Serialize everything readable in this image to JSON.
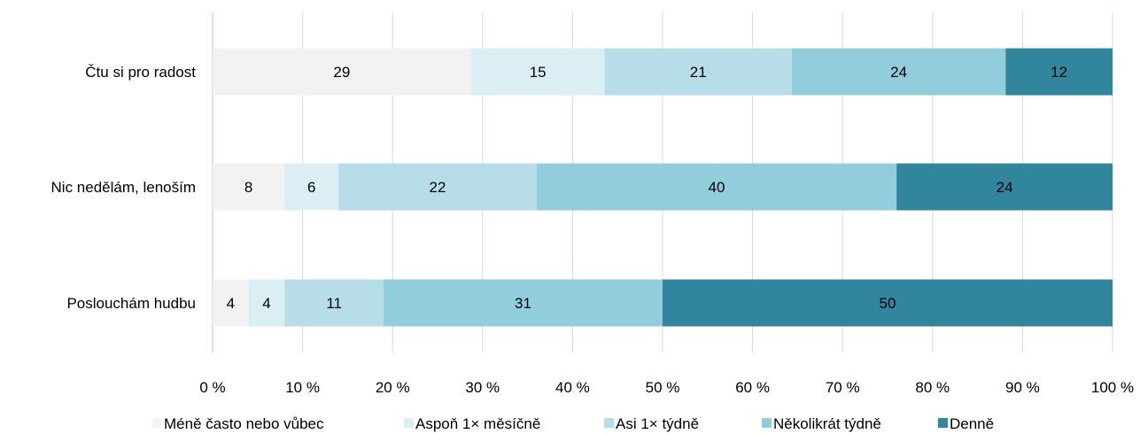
{
  "chart_data": {
    "type": "bar",
    "orientation": "horizontal",
    "stacked": "percent",
    "categories": [
      "Čtu si pro radost",
      "Nic nedělám, lenoším",
      "Poslouchám hudbu"
    ],
    "series": [
      {
        "name": "Méně často nebo vůbec",
        "color": "#f2f2f2",
        "values": [
          29,
          8,
          4
        ]
      },
      {
        "name": "Aspoň 1× měsíčně",
        "color": "#daeef3",
        "values": [
          15,
          6,
          4
        ]
      },
      {
        "name": "Asi 1× týdně",
        "color": "#b7dde8",
        "values": [
          21,
          22,
          11
        ]
      },
      {
        "name": "Několikrát týdně",
        "color": "#92cddc",
        "values": [
          24,
          40,
          31
        ]
      },
      {
        "name": "Denně",
        "color": "#31859c",
        "values": [
          12,
          24,
          50
        ]
      }
    ],
    "xlim": [
      0,
      100
    ],
    "x_ticks": [
      "0 %",
      "10 %",
      "20 %",
      "30 %",
      "40 %",
      "50 %",
      "60 %",
      "70 %",
      "80 %",
      "90 %",
      "100 %"
    ],
    "grid": true,
    "legend_position": "bottom",
    "data_labels": true
  }
}
